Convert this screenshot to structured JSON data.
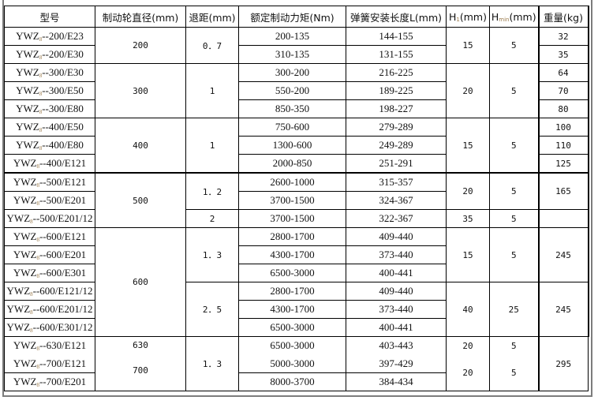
{
  "header": {
    "model": "型号",
    "diameter": "制动轮直径(mm)",
    "retract": "退距(mm)",
    "torque": "额定制动力矩(Nm)",
    "spring_length": "弹簧安装长度L(mm)",
    "h1": {
      "base": "H",
      "sub": "1",
      "unit": "(mm)"
    },
    "hmin": {
      "base": "H",
      "sub": "min",
      "unit": "(mm)"
    },
    "weight": "重量(kg)"
  },
  "rows": [
    {
      "model_prefix": "YWZ",
      "model_sub": "8",
      "model_suffix": "--200/E23",
      "torque": "200-135",
      "spring_length": "144-155"
    },
    {
      "model_prefix": "YWZ",
      "model_sub": "8",
      "model_suffix": "--200/E30",
      "torque": "310-135",
      "spring_length": "131-155"
    },
    {
      "model_prefix": "YWZ",
      "model_sub": "8",
      "model_suffix": "--300/E30",
      "torque": "300-200",
      "spring_length": "216-225"
    },
    {
      "model_prefix": "YWZ",
      "model_sub": "8",
      "model_suffix": "--300/E50",
      "torque": "550-200",
      "spring_length": "189-225"
    },
    {
      "model_prefix": "YWZ",
      "model_sub": "8",
      "model_suffix": "--300/E80",
      "torque": "850-350",
      "spring_length": "198-227"
    },
    {
      "model_prefix": "YWZ",
      "model_sub": "8",
      "model_suffix": "--400/E50",
      "torque": "750-600",
      "spring_length": "279-289"
    },
    {
      "model_prefix": "YWZ",
      "model_sub": "8",
      "model_suffix": "--400/E80",
      "torque": "1300-600",
      "spring_length": "249-289"
    },
    {
      "model_prefix": "YWZ",
      "model_sub": "8",
      "model_suffix": "--400/E121",
      "torque": "2000-850",
      "spring_length": "251-291"
    },
    {
      "model_prefix": "YWZ",
      "model_sub": "8",
      "model_suffix": "--500/E121",
      "torque": "2600-1000",
      "spring_length": "315-357"
    },
    {
      "model_prefix": "YWZ",
      "model_sub": "8",
      "model_suffix": "--500/E201",
      "torque": "3700-1500",
      "spring_length": "324-367"
    },
    {
      "model_prefix": "YWZ",
      "model_sub": "8",
      "model_suffix": "--500/E201/12",
      "torque": "3700-1500",
      "spring_length": "322-367"
    },
    {
      "model_prefix": "YWZ",
      "model_sub": "8",
      "model_suffix": "--600/E121",
      "torque": "2800-1700",
      "spring_length": "409-440"
    },
    {
      "model_prefix": "YWZ",
      "model_sub": "8",
      "model_suffix": "--600/E201",
      "torque": "4300-1700",
      "spring_length": "373-440"
    },
    {
      "model_prefix": "YWZ",
      "model_sub": "8",
      "model_suffix": "--600/E301",
      "torque": "6500-3000",
      "spring_length": "400-441"
    },
    {
      "model_prefix": "YWZ",
      "model_sub": "8",
      "model_suffix": "--600/E121/12",
      "torque": "2800-1700",
      "spring_length": "409-440"
    },
    {
      "model_prefix": "YWZ",
      "model_sub": "8",
      "model_suffix": "--600/E201/12",
      "torque": "4300-1700",
      "spring_length": "373-440"
    },
    {
      "model_prefix": "YWZ",
      "model_sub": "8",
      "model_suffix": "--600/E301/12",
      "torque": "6500-3000",
      "spring_length": "400-441"
    },
    {
      "model_prefix": "YWZ",
      "model_sub": "8",
      "model_suffix": "--630/E121",
      "torque": "6500-3000",
      "spring_length": "403-443"
    },
    {
      "model_prefix": "YWZ",
      "model_sub": "8",
      "model_suffix": "--700/E121",
      "torque": "5000-3000",
      "spring_length": "397-429"
    },
    {
      "model_prefix": "YWZ",
      "model_sub": "8",
      "model_suffix": "--700/E201",
      "torque": "8000-3700",
      "spring_length": "384-434"
    }
  ],
  "diameter": [
    "200",
    "300",
    "400",
    "500",
    "600",
    "630",
    "700"
  ],
  "retract": [
    "0．7",
    "1",
    "1",
    "1．2",
    "2",
    "1．3",
    "2．5",
    "1．3"
  ],
  "h1": [
    "15",
    "20",
    "15",
    "20",
    "35",
    "15",
    "40",
    "20",
    "20"
  ],
  "hmin": [
    "5",
    "5",
    "5",
    "5",
    "5",
    "5",
    "25",
    "5",
    "5"
  ],
  "weights": [
    "32",
    "35",
    "64",
    "70",
    "80",
    "100",
    "110",
    "125",
    "165",
    "",
    "245",
    "245",
    "295"
  ]
}
